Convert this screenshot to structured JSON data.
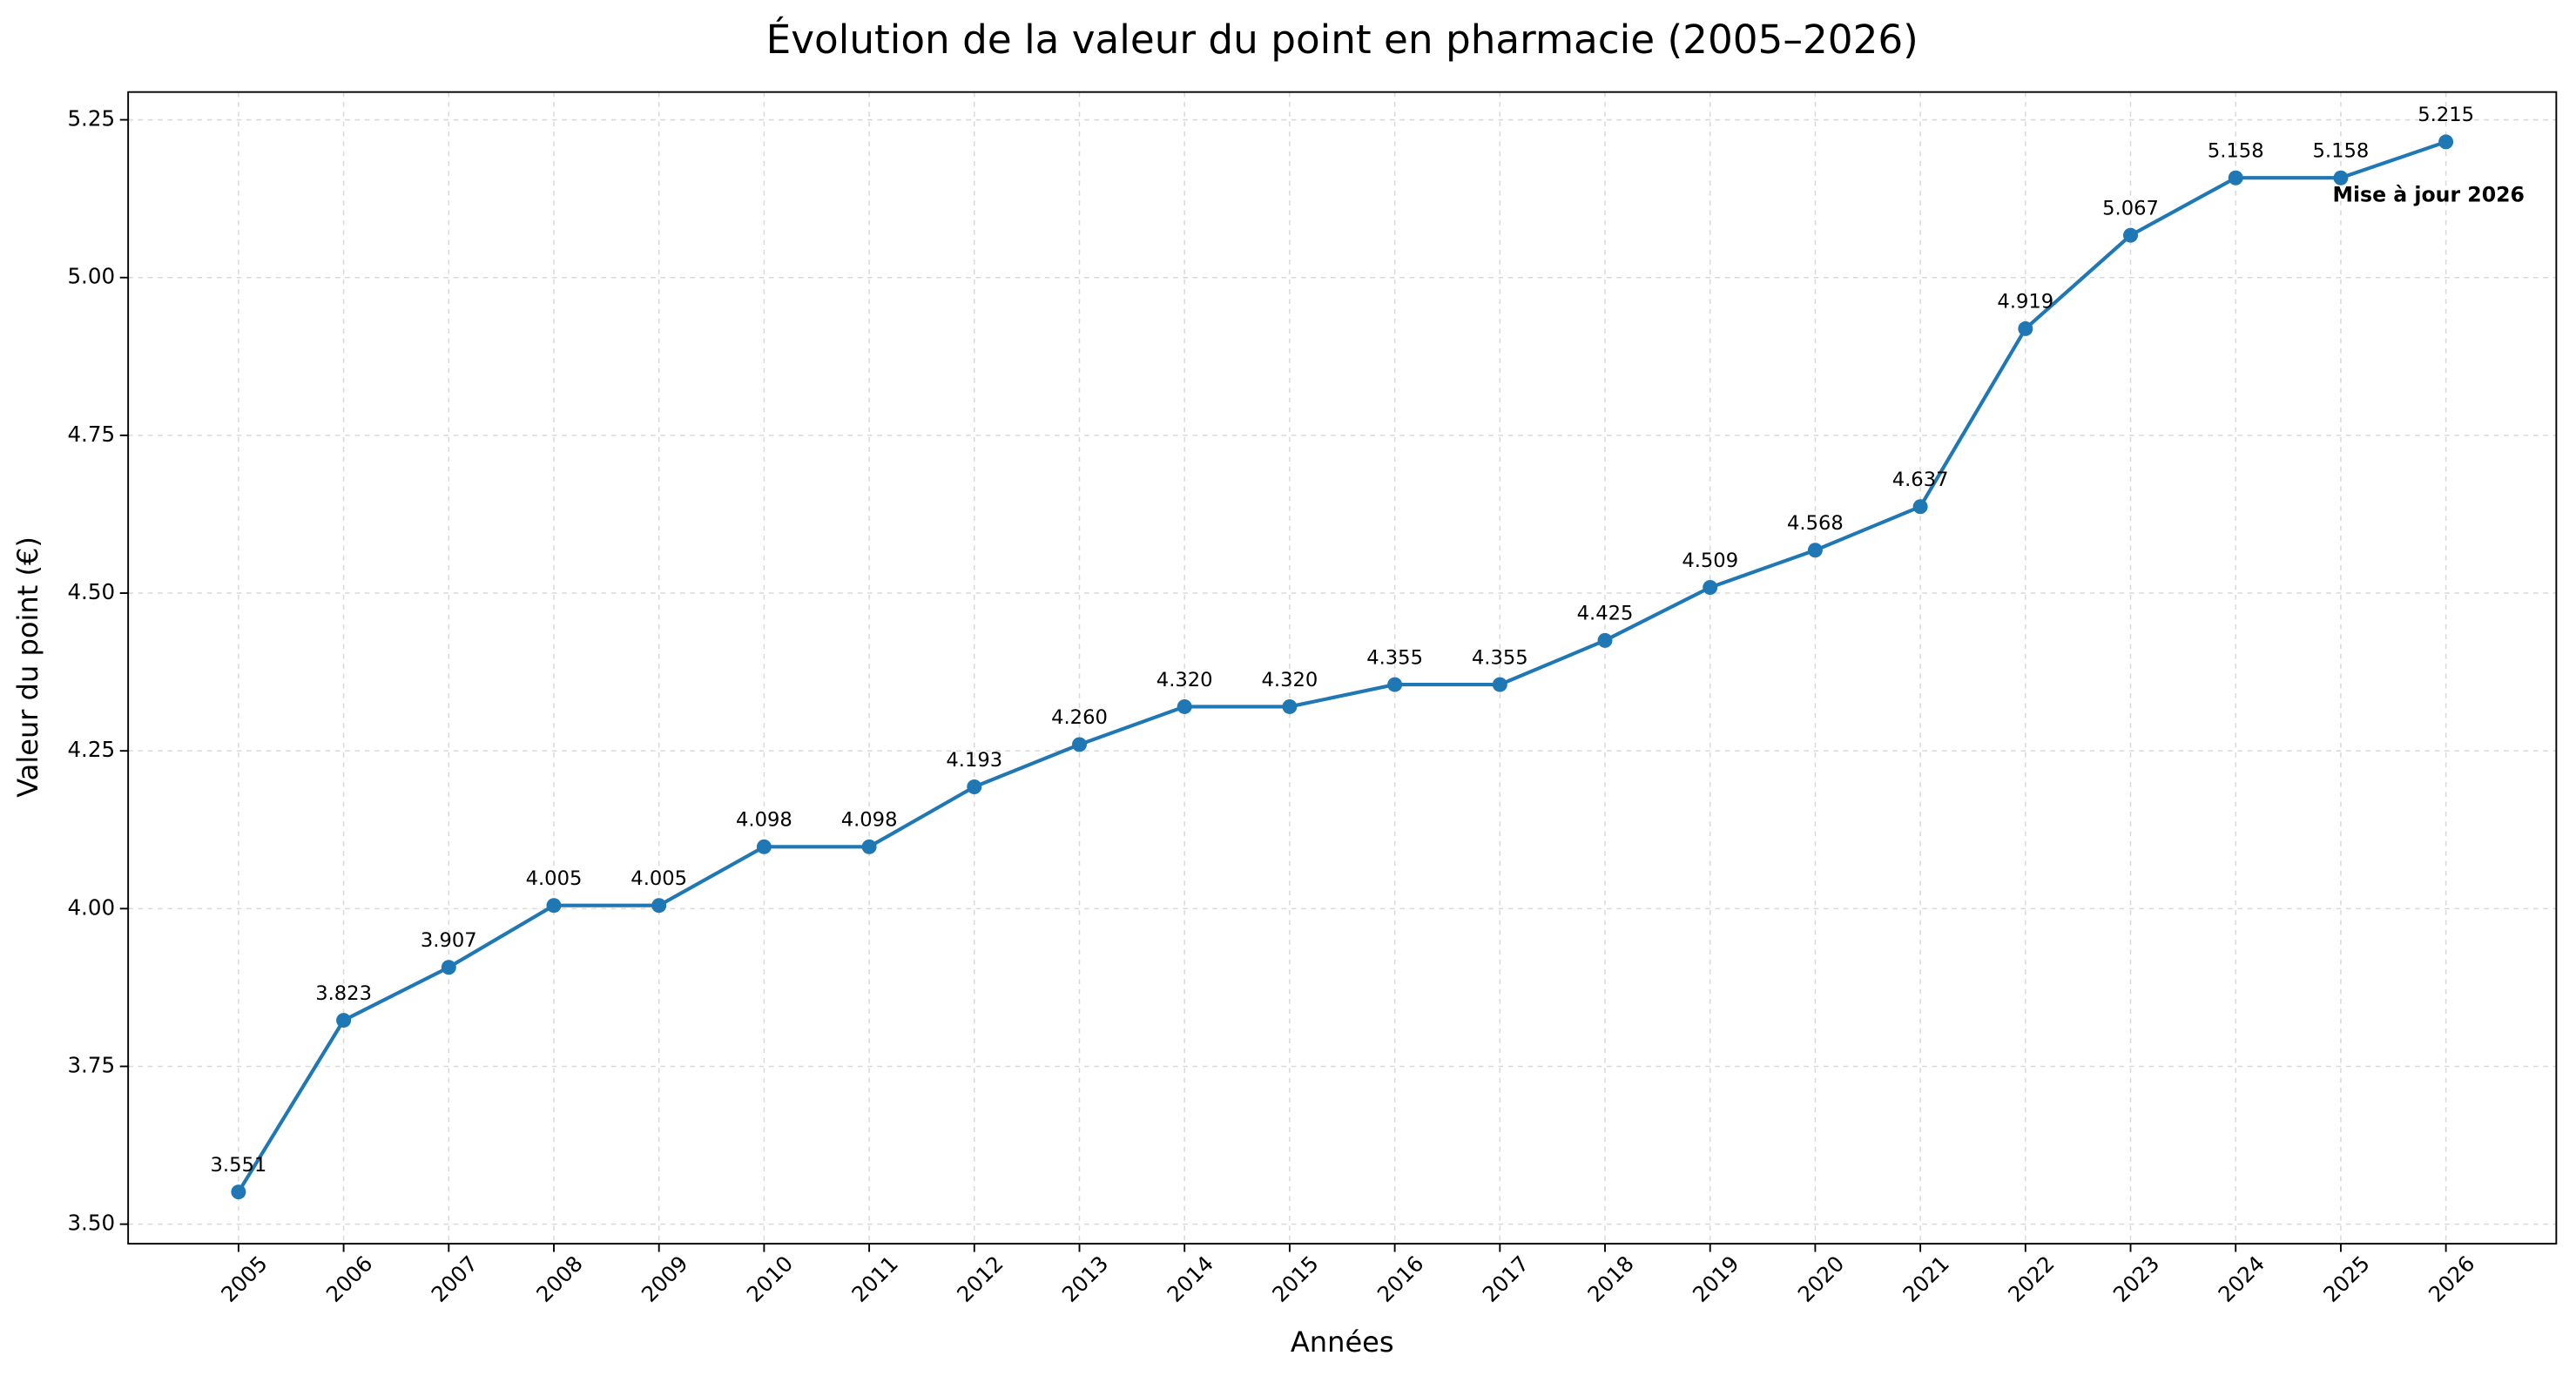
{
  "chart_data": {
    "type": "line",
    "title": "Évolution de la valeur du point en pharmacie (2005–2026)",
    "x_label": "Années",
    "y_label": "Valeur du point (€)",
    "categories": [
      "2005",
      "2006",
      "2007",
      "2008",
      "2009",
      "2010",
      "2011",
      "2012",
      "2013",
      "2014",
      "2015",
      "2016",
      "2017",
      "2018",
      "2019",
      "2020",
      "2021",
      "2022",
      "2023",
      "2024",
      "2025",
      "2026"
    ],
    "series": [
      {
        "name": "Valeur du point",
        "color": "#1f77b4",
        "values": [
          3.551,
          3.823,
          3.907,
          4.005,
          4.005,
          4.098,
          4.098,
          4.193,
          4.26,
          4.32,
          4.32,
          4.355,
          4.355,
          4.425,
          4.509,
          4.568,
          4.637,
          4.919,
          5.067,
          5.158,
          5.158,
          5.215
        ],
        "value_labels": [
          "3.551",
          "3.823",
          "3.907",
          "4.005",
          "4.005",
          "4.098",
          "4.098",
          "4.193",
          "4.260",
          "4.320",
          "4.320",
          "4.355",
          "4.355",
          "4.425",
          "4.509",
          "4.568",
          "4.637",
          "4.919",
          "5.067",
          "5.158",
          "5.158",
          "5.215"
        ]
      }
    ],
    "ylim": [
      3.469,
      5.294
    ],
    "yticks": [
      {
        "value": 3.5,
        "label": "3.50"
      },
      3.75,
      {
        "value": 4.0,
        "label": "4.00"
      },
      4.25,
      {
        "value": 4.5,
        "label": "4.50"
      },
      4.75,
      {
        "value": 5.0,
        "label": "5.00"
      },
      5.25
    ],
    "grid": true,
    "annotations": [
      {
        "text": "Mise à jour 2026",
        "category_index": 20
      }
    ]
  }
}
